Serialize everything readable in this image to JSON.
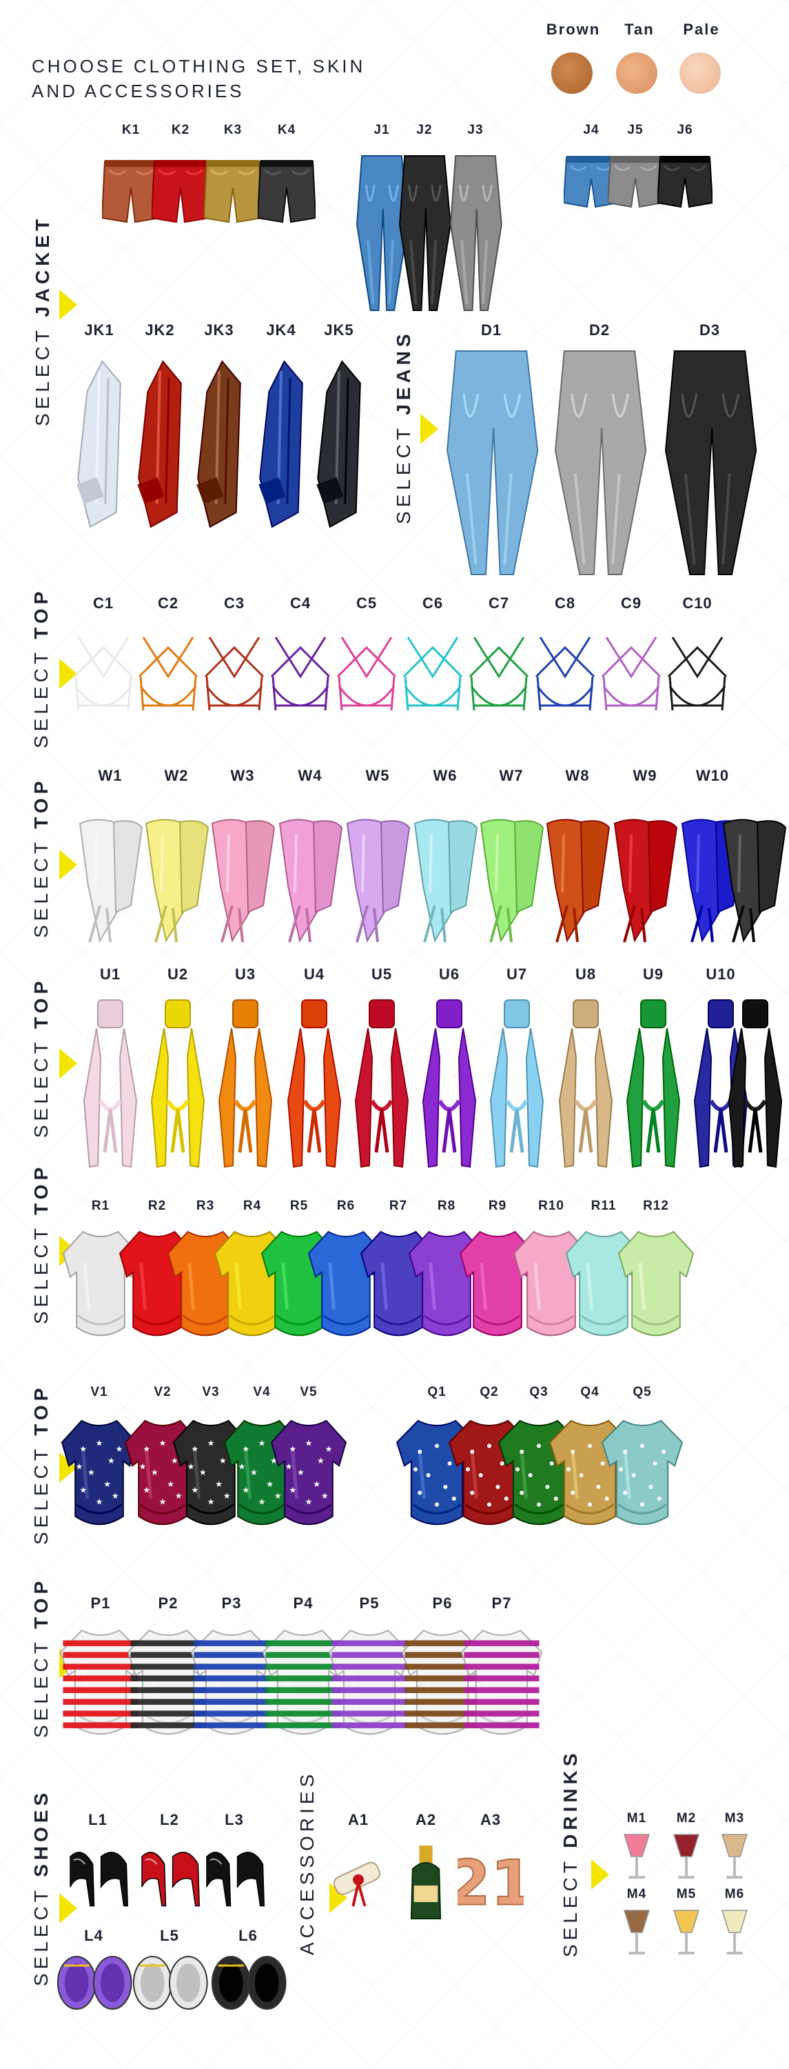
{
  "header": {
    "title_line1": "CHOOSE CLOTHING SET, SKIN",
    "title_line2": "AND ACCESSORIES"
  },
  "skins": [
    {
      "label": "Brown",
      "color": "#b8743f"
    },
    {
      "label": "Tan",
      "color": "#e3a276"
    },
    {
      "label": "Pale",
      "color": "#f4c6a6"
    }
  ],
  "sections": {
    "jacket": {
      "prefix": "SELECT ",
      "bold": "JACKET"
    },
    "jeans": {
      "prefix": "SELECT ",
      "bold": "JEANS"
    },
    "top_c": {
      "prefix": "SELECT ",
      "bold": "TOP"
    },
    "top_w": {
      "prefix": "SELECT ",
      "bold": "TOP"
    },
    "top_u": {
      "prefix": "SELECT ",
      "bold": "TOP"
    },
    "top_r": {
      "prefix": "SELECT ",
      "bold": "TOP"
    },
    "top_v": {
      "prefix": "SELECT ",
      "bold": "TOP"
    },
    "top_p": {
      "prefix": "SELECT ",
      "bold": "TOP"
    },
    "shoes": {
      "prefix": "SELECT ",
      "bold": "SHOES"
    },
    "accessories": {
      "prefix": "ACCESSORIES",
      "bold": ""
    },
    "drinks": {
      "prefix": "SELECT ",
      "bold": "DRINKS"
    }
  },
  "shorts_k": [
    {
      "label": "K1",
      "color": "#b45a3a"
    },
    {
      "label": "K2",
      "color": "#c8151b"
    },
    {
      "label": "K3",
      "color": "#b8963f"
    },
    {
      "label": "K4",
      "color": "#3a3a3a"
    }
  ],
  "jeans_j": [
    {
      "label": "J1",
      "color": "#4a86c2"
    },
    {
      "label": "J2",
      "color": "#2b2b2b"
    },
    {
      "label": "J3",
      "color": "#8c8c8c"
    }
  ],
  "shorts_j": [
    {
      "label": "J4",
      "color": "#4a86c2"
    },
    {
      "label": "J5",
      "color": "#8c8c8c"
    },
    {
      "label": "J6",
      "color": "#2b2b2b"
    }
  ],
  "jackets": [
    {
      "label": "JK1",
      "color": "#dfe7f3"
    },
    {
      "label": "JK2",
      "color": "#b32010"
    },
    {
      "label": "JK3",
      "color": "#7a3a1c"
    },
    {
      "label": "JK4",
      "color": "#1f3f9e"
    },
    {
      "label": "JK5",
      "color": "#2a2d33"
    }
  ],
  "jeans_d": [
    {
      "label": "D1",
      "color": "#7db4de"
    },
    {
      "label": "D2",
      "color": "#a8a8a8"
    },
    {
      "label": "D3",
      "color": "#2a2a2a"
    }
  ],
  "tops_c": [
    {
      "label": "C1",
      "color": "#e8e8e8"
    },
    {
      "label": "C2",
      "color": "#e07a12"
    },
    {
      "label": "C3",
      "color": "#b0301a"
    },
    {
      "label": "C4",
      "color": "#6a1fa0"
    },
    {
      "label": "C5",
      "color": "#e0409a"
    },
    {
      "label": "C6",
      "color": "#27c3c8"
    },
    {
      "label": "C7",
      "color": "#1fa040"
    },
    {
      "label": "C8",
      "color": "#1f3fb0"
    },
    {
      "label": "C9",
      "color": "#b060c0"
    },
    {
      "label": "C10",
      "color": "#1a1a1a"
    }
  ],
  "tops_w": [
    {
      "label": "W1",
      "color": "#f2f2f2"
    },
    {
      "label": "W2",
      "color": "#f5f08a"
    },
    {
      "label": "W3",
      "color": "#f7a8c8"
    },
    {
      "label": "W4",
      "color": "#f2a0d8"
    },
    {
      "label": "W5",
      "color": "#d8a8f0"
    },
    {
      "label": "W6",
      "color": "#a8e8f0"
    },
    {
      "label": "W7",
      "color": "#a0f080"
    },
    {
      "label": "W8",
      "color": "#d0501a"
    },
    {
      "label": "W9",
      "color": "#c8141a"
    },
    {
      "label": "W10",
      "color": "#2a2ad8"
    },
    {
      "label": "",
      "color": "#3a3a3a"
    }
  ],
  "tops_u": [
    {
      "label": "U1",
      "color": "#f5d8e6"
    },
    {
      "label": "U2",
      "color": "#f5e010"
    },
    {
      "label": "U3",
      "color": "#f08a10"
    },
    {
      "label": "U4",
      "color": "#e84a14"
    },
    {
      "label": "U5",
      "color": "#c81430"
    },
    {
      "label": "U6",
      "color": "#8a2ad0"
    },
    {
      "label": "U7",
      "color": "#8ad0f0"
    },
    {
      "label": "U8",
      "color": "#d8b888"
    },
    {
      "label": "U9",
      "color": "#20a040"
    },
    {
      "label": "U10",
      "color": "#2a2aa0"
    },
    {
      "label": "",
      "color": "#1a1a1a"
    }
  ],
  "tops_r": [
    {
      "label": "R1",
      "color": "#e8e8e8"
    },
    {
      "label": "R2",
      "color": "#e0141a"
    },
    {
      "label": "R3",
      "color": "#f07010"
    },
    {
      "label": "R4",
      "color": "#f0d010"
    },
    {
      "label": "R5",
      "color": "#20c040"
    },
    {
      "label": "R6",
      "color": "#2a68d8"
    },
    {
      "label": "R7",
      "color": "#4a40c0"
    },
    {
      "label": "R8",
      "color": "#8a40d0"
    },
    {
      "label": "R9",
      "color": "#e040a8"
    },
    {
      "label": "R10",
      "color": "#f5a8c8"
    },
    {
      "label": "R11",
      "color": "#a8e8e0"
    },
    {
      "label": "R12",
      "color": "#c8eca8"
    }
  ],
  "tops_v": [
    {
      "label": "V1",
      "color": "#1f2a7a"
    },
    {
      "label": "V2",
      "color": "#9a1040"
    },
    {
      "label": "V3",
      "color": "#2a2a2a"
    },
    {
      "label": "V4",
      "color": "#107a30"
    },
    {
      "label": "V5",
      "color": "#5a1f8a"
    }
  ],
  "tops_q": [
    {
      "label": "Q1",
      "color": "#1f4aa8"
    },
    {
      "label": "Q2",
      "color": "#a01818"
    },
    {
      "label": "Q3",
      "color": "#1f7a20"
    },
    {
      "label": "Q4",
      "color": "#c8a050"
    },
    {
      "label": "Q5",
      "color": "#8ccac8"
    }
  ],
  "tops_p": [
    {
      "label": "P1",
      "color": "#e0141a"
    },
    {
      "label": "P2",
      "color": "#2a2a2a"
    },
    {
      "label": "P3",
      "color": "#1f40b0"
    },
    {
      "label": "P4",
      "color": "#108a30"
    },
    {
      "label": "P5",
      "color": "#8a40c8"
    },
    {
      "label": "P6",
      "color": "#7a4a1a"
    },
    {
      "label": "P7",
      "color": "#b0209a"
    }
  ],
  "shoes_top": [
    {
      "label": "L1",
      "color": "#111111"
    },
    {
      "label": "L2",
      "color": "#c8101a"
    },
    {
      "label": "L3",
      "color": "#111111"
    }
  ],
  "shoes_bottom": [
    {
      "label": "L4",
      "color": "#8a5ad8"
    },
    {
      "label": "L5",
      "color": "#e8e8e8"
    },
    {
      "label": "L6",
      "color": "#2a2a2a"
    }
  ],
  "accessories": [
    {
      "label": "A1",
      "icon": "diploma-icon"
    },
    {
      "label": "A2",
      "icon": "champagne-bottle-icon"
    },
    {
      "label": "A3",
      "icon": "balloon-21-icon",
      "text": "21"
    }
  ],
  "drinks": [
    {
      "label": "M1",
      "color": "#f07090"
    },
    {
      "label": "M2",
      "color": "#8a0a14"
    },
    {
      "label": "M3",
      "color": "#d8b080"
    },
    {
      "label": "M4",
      "color": "#8a5a30"
    },
    {
      "label": "M5",
      "color": "#f0c040"
    },
    {
      "label": "M6",
      "color": "#f0e8b8"
    }
  ],
  "colors": {
    "accent": "#f3e500",
    "text": "#1d2230"
  }
}
